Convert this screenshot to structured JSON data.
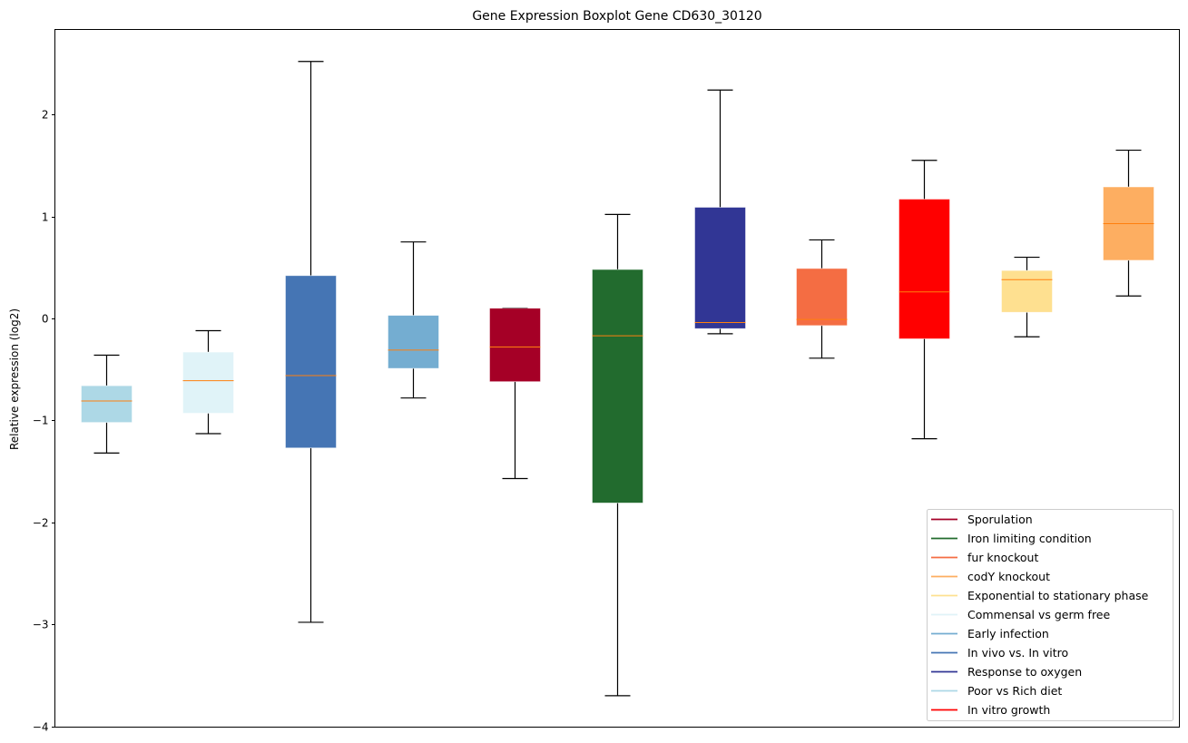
{
  "chart_data": {
    "type": "boxplot",
    "title": "Gene Expression Boxplot Gene CD630_30120",
    "xlabel": "",
    "ylabel": "Relative expression (log2)",
    "ylim": [
      -4.0,
      2.82
    ],
    "xlim": [
      0.5,
      11.5
    ],
    "yticks": [
      2,
      1,
      0,
      -1,
      -2,
      -3,
      -4
    ],
    "ytick_labels": [
      "2",
      "1",
      "0",
      "−1",
      "−2",
      "−3",
      "−4"
    ],
    "grid": false,
    "legend_position": "lower-right",
    "median_color": "#ff7f0e",
    "whisker_color": "#000000",
    "boxes": [
      {
        "name": "Poor vs Rich diet",
        "color": "#add8e6",
        "whisker_high": -0.36,
        "q3": -0.66,
        "median": -0.81,
        "q1": -1.02,
        "whisker_low": -1.32
      },
      {
        "name": "Commensal vs germ free",
        "color": "#e0f3f8",
        "whisker_high": -0.12,
        "q3": -0.33,
        "median": -0.61,
        "q1": -0.93,
        "whisker_low": -1.13
      },
      {
        "name": "In vivo vs. In vitro",
        "color": "#4575b4",
        "whisker_high": 2.52,
        "q3": 0.42,
        "median": -0.56,
        "q1": -1.27,
        "whisker_low": -2.98
      },
      {
        "name": "Early infection",
        "color": "#74add1",
        "whisker_high": 0.75,
        "q3": 0.03,
        "median": -0.31,
        "q1": -0.49,
        "whisker_low": -0.78
      },
      {
        "name": "Sporulation",
        "color": "#a50026",
        "whisker_high": 0.1,
        "q3": 0.1,
        "median": -0.28,
        "q1": -0.62,
        "whisker_low": -1.57
      },
      {
        "name": "Iron limiting condition",
        "color": "#226b2e",
        "whisker_high": 1.02,
        "q3": 0.48,
        "median": -0.17,
        "q1": -1.81,
        "whisker_low": -3.7
      },
      {
        "name": "Response to oxygen",
        "color": "#313695",
        "whisker_high": 2.24,
        "q3": 1.09,
        "median": -0.04,
        "q1": -0.1,
        "whisker_low": -0.15
      },
      {
        "name": "fur knockout",
        "color": "#f46d43",
        "whisker_high": 0.77,
        "q3": 0.49,
        "median": -0.01,
        "q1": -0.07,
        "whisker_low": -0.39
      },
      {
        "name": "In vitro growth",
        "color": "#ff0000",
        "whisker_high": 1.55,
        "q3": 1.17,
        "median": 0.26,
        "q1": -0.2,
        "whisker_low": -1.18
      },
      {
        "name": "Exponential to stationary phase",
        "color": "#fee090",
        "whisker_high": 0.6,
        "q3": 0.47,
        "median": 0.38,
        "q1": 0.06,
        "whisker_low": -0.18
      },
      {
        "name": "codY knockout",
        "color": "#fdae61",
        "whisker_high": 1.65,
        "q3": 1.29,
        "median": 0.93,
        "q1": 0.57,
        "whisker_low": 0.22
      }
    ],
    "legend": [
      {
        "label": "Sporulation",
        "color": "#a50026"
      },
      {
        "label": "Iron limiting condition",
        "color": "#226b2e"
      },
      {
        "label": "fur knockout",
        "color": "#f46d43"
      },
      {
        "label": "codY knockout",
        "color": "#fdae61"
      },
      {
        "label": "Exponential to stationary phase",
        "color": "#fee090"
      },
      {
        "label": "Commensal vs germ free",
        "color": "#e0f3f8"
      },
      {
        "label": "Early infection",
        "color": "#74add1"
      },
      {
        "label": "In vivo vs. In vitro",
        "color": "#4575b4"
      },
      {
        "label": "Response to oxygen",
        "color": "#313695"
      },
      {
        "label": "Poor vs Rich diet",
        "color": "#add8e6"
      },
      {
        "label": "In vitro growth",
        "color": "#ff0000"
      }
    ]
  }
}
